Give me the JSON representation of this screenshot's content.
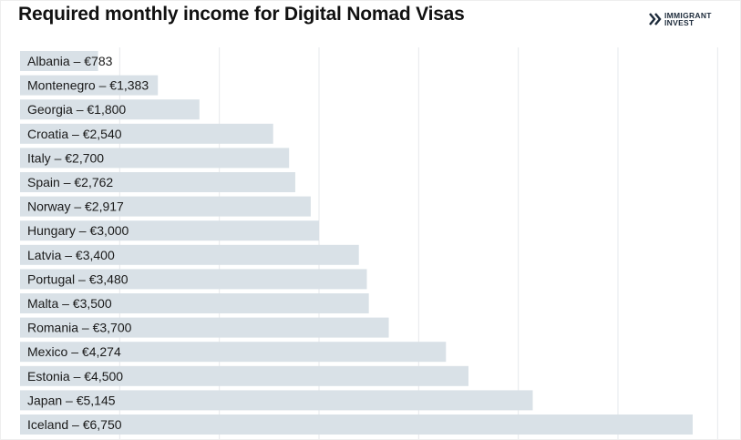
{
  "title": "Required monthly income for Digital Nomad Visas",
  "logo": {
    "line1": "IMMIGRANT",
    "line2": "INVEST",
    "icon": "double-chevron-right-icon",
    "color": "#1c2a3a"
  },
  "colors": {
    "bar": "#d9e1e7",
    "grid": "#e6e9ec",
    "text": "#1a1a1a"
  },
  "chart_data": {
    "type": "bar",
    "orientation": "horizontal",
    "title": "Required monthly income for Digital Nomad Visas",
    "unit": "€",
    "xlim": [
      0,
      7000
    ],
    "grid": true,
    "categories": [
      "Albania",
      "Montenegro",
      "Georgia",
      "Croatia",
      "Italy",
      "Spain",
      "Norway",
      "Hungary",
      "Latvia",
      "Portugal",
      "Malta",
      "Romania",
      "Mexico",
      "Estonia",
      "Japan",
      "Iceland"
    ],
    "values": [
      783,
      1383,
      1800,
      2540,
      2700,
      2762,
      2917,
      3000,
      3400,
      3480,
      3500,
      3700,
      4274,
      4500,
      5145,
      6750
    ],
    "labels": [
      "Albania – €783",
      "Montenegro – €1,383",
      "Georgia – €1,800",
      "Croatia – €2,540",
      "Italy – €2,700",
      "Spain – €2,762",
      "Norway – €2,917",
      "Hungary – €3,000",
      "Latvia – €3,400",
      "Portugal – €3,480",
      "Malta – €3,500",
      "Romania – €3,700",
      "Mexico – €4,274",
      "Estonia – €4,500",
      "Japan – €5,145",
      "Iceland – €6,750"
    ]
  }
}
